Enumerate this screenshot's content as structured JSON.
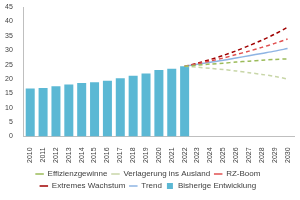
{
  "chart_data": {
    "type": "bar",
    "categories": [
      "2010",
      "2011",
      "2012",
      "2013",
      "2014",
      "2015",
      "2016",
      "2017",
      "2018",
      "2019",
      "2020",
      "2021",
      "2022",
      "2023",
      "2024",
      "2025",
      "2026",
      "2027",
      "2028",
      "2029",
      "2030"
    ],
    "series": [
      {
        "name": "Bisherige Entwicklung",
        "type": "bar",
        "color": "#5bb8d4",
        "values": [
          16.7,
          16.9,
          17.5,
          18.1,
          18.6,
          18.9,
          19.4,
          20.3,
          21.1,
          21.9,
          23.1,
          23.6,
          24.4,
          null,
          null,
          null,
          null,
          null,
          null,
          null,
          null
        ]
      },
      {
        "name": "Effizienzgewinne",
        "type": "line",
        "color": "#9bbb59",
        "line_style": "dashed",
        "marker": "none",
        "values": [
          null,
          null,
          null,
          null,
          null,
          null,
          null,
          null,
          null,
          null,
          null,
          null,
          24.4,
          24.8,
          25.2,
          25.5,
          25.9,
          26.2,
          26.5,
          26.8,
          27.0
        ]
      },
      {
        "name": "Verlagerung ins Ausland",
        "type": "line",
        "color": "#c8d6a8",
        "line_style": "dashed",
        "marker": "none",
        "values": [
          null,
          null,
          null,
          null,
          null,
          null,
          null,
          null,
          null,
          null,
          null,
          null,
          24.4,
          24.1,
          23.7,
          23.3,
          22.8,
          22.2,
          21.6,
          20.9,
          20.0
        ]
      },
      {
        "name": "RZ-Boom",
        "type": "line",
        "color": "#e05050",
        "line_style": "dashed",
        "marker": "none",
        "values": [
          null,
          null,
          null,
          null,
          null,
          null,
          null,
          null,
          null,
          null,
          null,
          null,
          24.4,
          25.3,
          26.3,
          27.3,
          28.5,
          29.7,
          31.0,
          32.4,
          33.9
        ]
      },
      {
        "name": "Extremes Wachstum",
        "type": "line",
        "color": "#a00000",
        "line_style": "dashed",
        "marker": "none",
        "values": [
          null,
          null,
          null,
          null,
          null,
          null,
          null,
          null,
          null,
          null,
          null,
          null,
          24.4,
          25.5,
          26.8,
          28.2,
          29.8,
          31.6,
          33.5,
          35.6,
          38.0
        ]
      },
      {
        "name": "Trend",
        "type": "line",
        "color": "#8eb4e3",
        "line_style": "solid",
        "marker": "none",
        "values": [
          null,
          null,
          null,
          null,
          null,
          null,
          null,
          null,
          null,
          null,
          null,
          null,
          24.4,
          25.1,
          25.8,
          26.5,
          27.3,
          28.1,
          28.9,
          29.7,
          30.6
        ]
      }
    ],
    "ylim": [
      0,
      45
    ],
    "yticks": [
      0,
      5,
      10,
      15,
      20,
      25,
      30,
      35,
      40,
      45
    ],
    "grid": false,
    "legend": "bottom"
  }
}
